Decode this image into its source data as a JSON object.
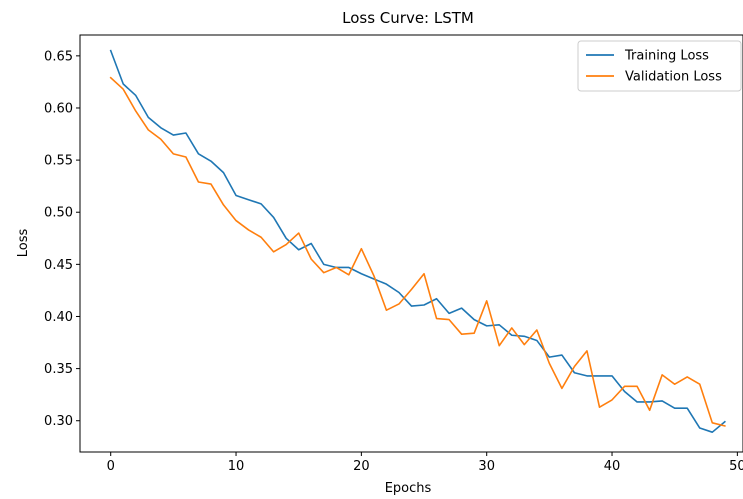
{
  "chart_data": {
    "type": "line",
    "title": "Loss Curve: LSTM",
    "xlabel": "Epochs",
    "ylabel": "Loss",
    "xlim": [
      -2.45,
      50.45
    ],
    "ylim": [
      0.27,
      0.67
    ],
    "xticks": [
      0,
      10,
      20,
      30,
      40,
      50
    ],
    "yticks": [
      0.3,
      0.35,
      0.4,
      0.45,
      0.5,
      0.55,
      0.6,
      0.65
    ],
    "xtick_labels": [
      "0",
      "10",
      "20",
      "30",
      "40",
      "50"
    ],
    "ytick_labels": [
      "0.30",
      "0.35",
      "0.40",
      "0.45",
      "0.50",
      "0.55",
      "0.60",
      "0.65"
    ],
    "grid": false,
    "legend_position": "top-right",
    "x": [
      0,
      1,
      2,
      3,
      4,
      5,
      6,
      7,
      8,
      9,
      10,
      11,
      12,
      13,
      14,
      15,
      16,
      17,
      18,
      19,
      20,
      21,
      22,
      23,
      24,
      25,
      26,
      27,
      28,
      29,
      30,
      31,
      32,
      33,
      34,
      35,
      36,
      37,
      38,
      39,
      40,
      41,
      42,
      43,
      44,
      45,
      46,
      47,
      48,
      49
    ],
    "series": [
      {
        "name": "Training Loss",
        "color": "#1f77b4",
        "values": [
          0.655,
          0.623,
          0.612,
          0.591,
          0.581,
          0.574,
          0.576,
          0.556,
          0.549,
          0.538,
          0.516,
          0.512,
          0.508,
          0.495,
          0.475,
          0.464,
          0.47,
          0.45,
          0.447,
          0.447,
          0.441,
          0.436,
          0.431,
          0.423,
          0.41,
          0.411,
          0.417,
          0.403,
          0.408,
          0.397,
          0.391,
          0.392,
          0.382,
          0.381,
          0.377,
          0.361,
          0.363,
          0.346,
          0.343,
          0.343,
          0.343,
          0.328,
          0.318,
          0.318,
          0.319,
          0.312,
          0.312,
          0.293,
          0.289,
          0.299
        ]
      },
      {
        "name": "Validation Loss",
        "color": "#ff7f0e",
        "values": [
          0.629,
          0.618,
          0.597,
          0.579,
          0.57,
          0.556,
          0.553,
          0.529,
          0.527,
          0.507,
          0.492,
          0.483,
          0.476,
          0.462,
          0.469,
          0.48,
          0.455,
          0.442,
          0.447,
          0.44,
          0.465,
          0.439,
          0.406,
          0.412,
          0.426,
          0.441,
          0.398,
          0.397,
          0.383,
          0.384,
          0.415,
          0.372,
          0.389,
          0.373,
          0.387,
          0.355,
          0.331,
          0.352,
          0.367,
          0.313,
          0.32,
          0.333,
          0.333,
          0.31,
          0.344,
          0.335,
          0.342,
          0.335,
          0.298,
          0.295
        ]
      }
    ]
  }
}
